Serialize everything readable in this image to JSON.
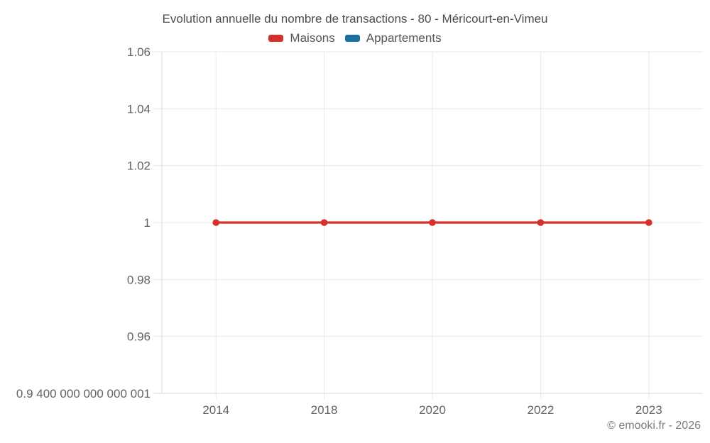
{
  "chart": {
    "title": "Evolution annuelle du nombre de transactions - 80 - Méricourt-en-Vimeu",
    "copyright": "© emooki.fr - 2026"
  },
  "chart_data": {
    "type": "line",
    "title": "Evolution annuelle du nombre de transactions - 80 - Méricourt-en-Vimeu",
    "categories": [
      "2014",
      "2018",
      "2020",
      "2022",
      "2023"
    ],
    "series": [
      {
        "name": "Maisons",
        "color": "#d3312c",
        "values": [
          1,
          1,
          1,
          1,
          1
        ]
      },
      {
        "name": "Appartements",
        "color": "#1c70a4",
        "values": []
      }
    ],
    "xlabel": "",
    "ylabel": "",
    "ylim": [
      0.9400000000000001,
      1.06
    ],
    "y_ticks": [
      {
        "label": "1.06",
        "value": 1.06
      },
      {
        "label": "1.04",
        "value": 1.04
      },
      {
        "label": "1.02",
        "value": 1.02
      },
      {
        "label": "1",
        "value": 1.0
      },
      {
        "label": "0.98",
        "value": 0.98
      },
      {
        "label": "0.96",
        "value": 0.96
      },
      {
        "label": "0.9 400 000 000 000 001",
        "value": 0.94
      }
    ],
    "grid": true,
    "legend_position": "top",
    "colors": {
      "grid_line": "#e9e9e9",
      "axis_border": "#d8d8d8",
      "tick_text": "#636363",
      "title_text": "#4c4c4c",
      "copyright_text": "#7d7d7d",
      "background": "#ffffff"
    }
  }
}
